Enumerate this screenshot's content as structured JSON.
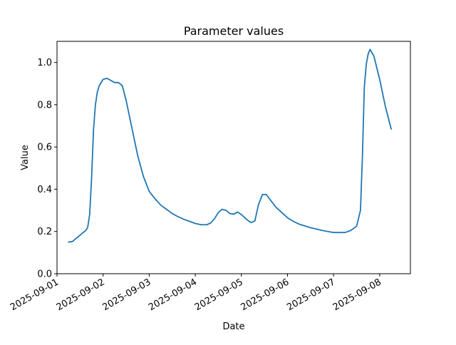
{
  "chart_data": {
    "type": "line",
    "title": "Parameter values",
    "xlabel": "Date",
    "ylabel": "Value",
    "x_tick_labels": [
      "2025-09-01",
      "2025-09-02",
      "2025-09-03",
      "2025-09-04",
      "2025-09-05",
      "2025-09-06",
      "2025-09-07",
      "2025-09-08"
    ],
    "y_tick_labels": [
      "0.0",
      "0.2",
      "0.4",
      "0.6",
      "0.8",
      "1.0"
    ],
    "y_ticks": [
      0.0,
      0.2,
      0.4,
      0.6,
      0.8,
      1.0
    ],
    "xlim": [
      "2025-09-01T00:00",
      "2025-09-08T16:00"
    ],
    "ylim": [
      0.0,
      1.1
    ],
    "grid": false,
    "line_color": "#1f77b4",
    "series": [
      {
        "x": [
          "2025-09-01T06:00",
          "2025-09-01T08:00",
          "2025-09-01T09:00",
          "2025-09-01T11:00",
          "2025-09-01T13:00",
          "2025-09-01T15:00",
          "2025-09-01T16:00",
          "2025-09-01T17:00",
          "2025-09-01T18:00",
          "2025-09-01T19:00",
          "2025-09-01T20:00",
          "2025-09-01T21:00",
          "2025-09-01T22:00",
          "2025-09-02T00:00",
          "2025-09-02T02:00",
          "2025-09-02T04:00",
          "2025-09-02T06:00",
          "2025-09-02T08:00",
          "2025-09-02T10:00",
          "2025-09-02T12:00",
          "2025-09-02T15:00",
          "2025-09-02T18:00",
          "2025-09-02T21:00",
          "2025-09-03T00:00",
          "2025-09-03T03:00",
          "2025-09-03T06:00",
          "2025-09-03T09:00",
          "2025-09-03T12:00",
          "2025-09-03T15:00",
          "2025-09-03T18:00",
          "2025-09-03T21:00",
          "2025-09-04T00:00",
          "2025-09-04T03:00",
          "2025-09-04T06:00",
          "2025-09-04T08:00",
          "2025-09-04T10:00",
          "2025-09-04T12:00",
          "2025-09-04T14:00",
          "2025-09-04T16:00",
          "2025-09-04T18:00",
          "2025-09-04T20:00",
          "2025-09-04T22:00",
          "2025-09-05T00:00",
          "2025-09-05T03:00",
          "2025-09-05T05:00",
          "2025-09-05T07:00",
          "2025-09-05T09:00",
          "2025-09-05T11:00",
          "2025-09-05T13:00",
          "2025-09-05T15:00",
          "2025-09-05T18:00",
          "2025-09-05T21:00",
          "2025-09-06T00:00",
          "2025-09-06T03:00",
          "2025-09-06T06:00",
          "2025-09-06T12:00",
          "2025-09-06T18:00",
          "2025-09-07T00:00",
          "2025-09-07T06:00",
          "2025-09-07T09:00",
          "2025-09-07T12:00",
          "2025-09-07T14:00",
          "2025-09-07T15:00",
          "2025-09-07T16:00",
          "2025-09-07T17:00",
          "2025-09-07T18:00",
          "2025-09-07T19:00",
          "2025-09-07T21:00",
          "2025-09-08T00:00",
          "2025-09-08T03:00",
          "2025-09-08T06:00"
        ],
        "y": [
          0.15,
          0.152,
          0.16,
          0.175,
          0.19,
          0.205,
          0.22,
          0.28,
          0.45,
          0.68,
          0.8,
          0.86,
          0.89,
          0.92,
          0.925,
          0.915,
          0.905,
          0.905,
          0.89,
          0.82,
          0.69,
          0.56,
          0.46,
          0.39,
          0.355,
          0.325,
          0.305,
          0.285,
          0.27,
          0.258,
          0.248,
          0.238,
          0.232,
          0.232,
          0.24,
          0.26,
          0.29,
          0.305,
          0.3,
          0.285,
          0.282,
          0.292,
          0.28,
          0.255,
          0.242,
          0.25,
          0.33,
          0.375,
          0.375,
          0.35,
          0.315,
          0.29,
          0.265,
          0.248,
          0.235,
          0.218,
          0.205,
          0.195,
          0.195,
          0.205,
          0.225,
          0.3,
          0.55,
          0.88,
          0.99,
          1.04,
          1.062,
          1.03,
          0.92,
          0.79,
          0.685
        ]
      }
    ]
  }
}
